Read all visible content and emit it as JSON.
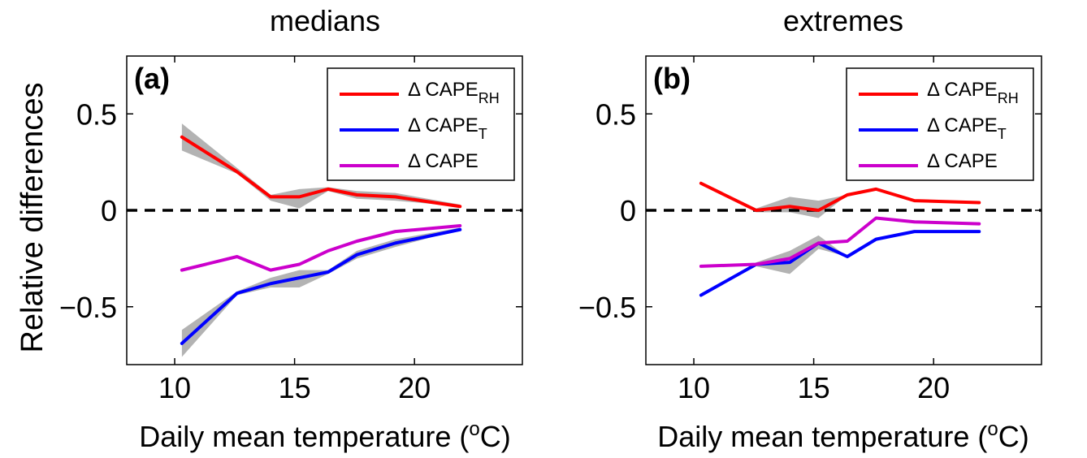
{
  "figure": {
    "ylabel": "Relative differences",
    "xlabel_main": "Daily mean temperature (",
    "xlabel_sup": "o",
    "xlabel_end": "C)"
  },
  "colors": {
    "rh": "#ff0000",
    "t": "#0000ff",
    "total": "#cc00cc",
    "band": "#b3b3b3",
    "zero": "#000000"
  },
  "chart_data": [
    {
      "type": "line",
      "title": "medians",
      "panel_label": "(a)",
      "xlim": [
        8,
        24.5
      ],
      "ylim": [
        -0.8,
        0.8
      ],
      "xticks": [
        10,
        15,
        20
      ],
      "yticks": [
        -0.5,
        0,
        0.5
      ],
      "ytick_labels": [
        "−0.5",
        "0",
        "0.5"
      ],
      "legend_position": "top-right",
      "zero_line": 0,
      "series": [
        {
          "key": "rh",
          "name": "Δ CAPE",
          "sub": "RH",
          "x": [
            10.3,
            12.6,
            14.0,
            15.2,
            16.4,
            17.6,
            19.2,
            21.9
          ],
          "y": [
            0.38,
            0.2,
            0.07,
            0.07,
            0.11,
            0.08,
            0.07,
            0.02
          ],
          "band_lower": [
            0.31,
            0.19,
            0.05,
            0.01,
            0.1,
            0.06,
            0.05,
            0.02
          ],
          "band_upper": [
            0.45,
            0.22,
            0.08,
            0.11,
            0.12,
            0.1,
            0.09,
            0.03
          ]
        },
        {
          "key": "t",
          "name": "Δ CAPE",
          "sub": "T",
          "x": [
            10.3,
            12.6,
            14.0,
            15.2,
            16.4,
            17.6,
            19.2,
            21.9
          ],
          "y": [
            -0.69,
            -0.43,
            -0.38,
            -0.35,
            -0.32,
            -0.23,
            -0.17,
            -0.1
          ],
          "band_lower": [
            -0.76,
            -0.44,
            -0.4,
            -0.4,
            -0.33,
            -0.25,
            -0.19,
            -0.1
          ],
          "band_upper": [
            -0.62,
            -0.42,
            -0.35,
            -0.31,
            -0.31,
            -0.21,
            -0.15,
            -0.09
          ]
        },
        {
          "key": "total",
          "name": "Δ CAPE",
          "sub": "",
          "x": [
            10.3,
            12.6,
            14.0,
            15.2,
            16.4,
            17.6,
            19.2,
            21.9
          ],
          "y": [
            -0.31,
            -0.24,
            -0.31,
            -0.28,
            -0.21,
            -0.16,
            -0.11,
            -0.08
          ]
        }
      ]
    },
    {
      "type": "line",
      "title": "extremes",
      "panel_label": "(b)",
      "xlim": [
        8,
        24.5
      ],
      "ylim": [
        -0.8,
        0.8
      ],
      "xticks": [
        10,
        15,
        20
      ],
      "yticks": [
        -0.5,
        0,
        0.5
      ],
      "ytick_labels": [
        "−0.5",
        "0",
        "0.5"
      ],
      "legend_position": "top-right",
      "zero_line": 0,
      "series": [
        {
          "key": "rh",
          "name": "Δ CAPE",
          "sub": "RH",
          "x": [
            10.3,
            12.6,
            14.0,
            15.2,
            16.4,
            17.6,
            19.2,
            21.9
          ],
          "y": [
            0.14,
            0.0,
            0.02,
            0.0,
            0.08,
            0.11,
            0.05,
            0.04
          ],
          "band_lower": [
            0.14,
            -0.01,
            -0.01,
            -0.04,
            0.08,
            0.11,
            0.05,
            0.04
          ],
          "band_upper": [
            0.14,
            0.01,
            0.07,
            0.05,
            0.08,
            0.11,
            0.05,
            0.04
          ]
        },
        {
          "key": "t",
          "name": "Δ CAPE",
          "sub": "T",
          "x": [
            10.3,
            12.6,
            14.0,
            15.2,
            16.4,
            17.6,
            19.2,
            21.9
          ],
          "y": [
            -0.44,
            -0.28,
            -0.27,
            -0.17,
            -0.24,
            -0.15,
            -0.11,
            -0.11
          ],
          "band_lower": [
            -0.44,
            -0.29,
            -0.33,
            -0.2,
            -0.24,
            -0.15,
            -0.11,
            -0.11
          ],
          "band_upper": [
            -0.44,
            -0.27,
            -0.21,
            -0.13,
            -0.24,
            -0.15,
            -0.11,
            -0.11
          ]
        },
        {
          "key": "total",
          "name": "Δ CAPE",
          "sub": "",
          "x": [
            10.3,
            12.6,
            14.0,
            15.2,
            16.4,
            17.6,
            19.2,
            21.9
          ],
          "y": [
            -0.29,
            -0.28,
            -0.25,
            -0.17,
            -0.16,
            -0.04,
            -0.06,
            -0.07
          ]
        }
      ]
    }
  ]
}
